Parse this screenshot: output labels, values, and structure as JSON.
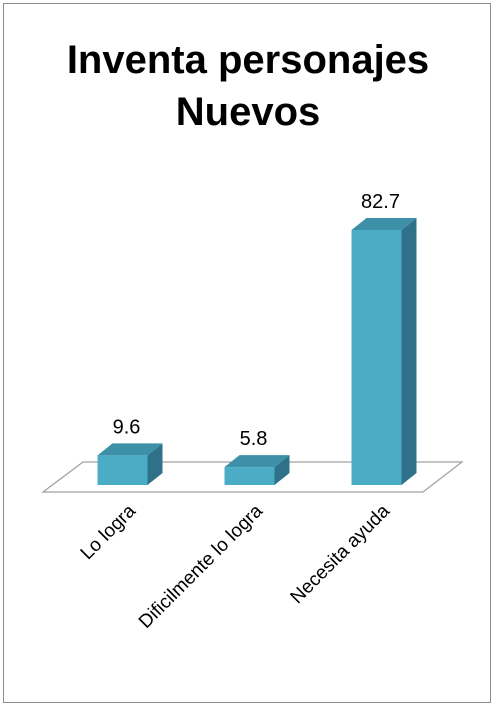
{
  "chart_data": {
    "type": "bar",
    "title_lines": [
      "Inventa personajes",
      "Nuevos"
    ],
    "categories": [
      "Lo logra",
      "Dificilmente lo logra",
      "Necesita ayuda"
    ],
    "values": [
      9.6,
      5.8,
      82.7
    ],
    "value_labels": [
      "9.6",
      "5.8",
      "82.7"
    ],
    "xlabel": "",
    "ylabel": "",
    "ylim": [
      0,
      82.7
    ],
    "grid": false,
    "legend": "none",
    "bar_style": "3d-column",
    "colors": {
      "bar_front": "#4bacc6",
      "bar_top": "#3d90a8",
      "bar_side": "#2e7189",
      "floor_stroke": "#a0a0a0",
      "frame": "#8c8c8c"
    }
  }
}
